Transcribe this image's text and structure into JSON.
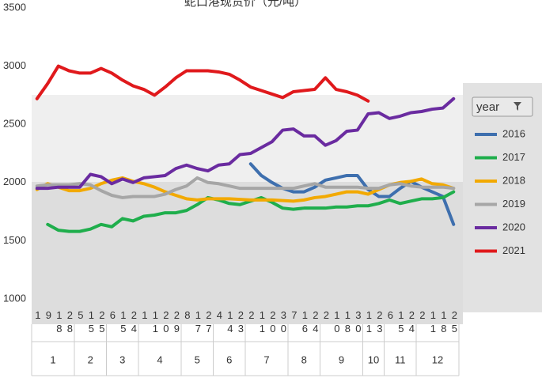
{
  "chart_data": {
    "type": "line",
    "title": "蛇口港现货价（元/吨）",
    "legend_title": "year",
    "legend_position": "right",
    "ylim": [
      1000,
      3500
    ],
    "yticks": [
      1000,
      1500,
      2000,
      2500,
      3000,
      3500
    ],
    "grid": false,
    "categories": [
      {
        "day": "1",
        "month": "1"
      },
      {
        "day": "9",
        "month": "1"
      },
      {
        "day": "18",
        "month": "1"
      },
      {
        "day": "28",
        "month": "1"
      },
      {
        "day": "5",
        "month": "2"
      },
      {
        "day": "15",
        "month": "2"
      },
      {
        "day": "25",
        "month": "2"
      },
      {
        "day": "6",
        "month": "3"
      },
      {
        "day": "15",
        "month": "3"
      },
      {
        "day": "24",
        "month": "3"
      },
      {
        "day": "1",
        "month": "4"
      },
      {
        "day": "11",
        "month": "4"
      },
      {
        "day": "20",
        "month": "4"
      },
      {
        "day": "29",
        "month": "4"
      },
      {
        "day": "8",
        "month": "5"
      },
      {
        "day": "17",
        "month": "5"
      },
      {
        "day": "27",
        "month": "5"
      },
      {
        "day": "4",
        "month": "6"
      },
      {
        "day": "14",
        "month": "6"
      },
      {
        "day": "23",
        "month": "6"
      },
      {
        "day": "2",
        "month": "7"
      },
      {
        "day": "11",
        "month": "7"
      },
      {
        "day": "20",
        "month": "7"
      },
      {
        "day": "30",
        "month": "7"
      },
      {
        "day": "7",
        "month": "8"
      },
      {
        "day": "16",
        "month": "8"
      },
      {
        "day": "24",
        "month": "8"
      },
      {
        "day": "2",
        "month": "9"
      },
      {
        "day": "10",
        "month": "9"
      },
      {
        "day": "18",
        "month": "9"
      },
      {
        "day": "30",
        "month": "9"
      },
      {
        "day": "11",
        "month": "10"
      },
      {
        "day": "23",
        "month": "10"
      },
      {
        "day": "6",
        "month": "11"
      },
      {
        "day": "15",
        "month": "11"
      },
      {
        "day": "24",
        "month": "11"
      },
      {
        "day": "2",
        "month": "12"
      },
      {
        "day": "11",
        "month": "12"
      },
      {
        "day": "18",
        "month": "12"
      },
      {
        "day": "25",
        "month": "12"
      }
    ],
    "series": [
      {
        "name": "2016",
        "color": "#3e6fae",
        "values": [
          null,
          null,
          null,
          null,
          null,
          null,
          null,
          null,
          null,
          null,
          null,
          null,
          null,
          null,
          null,
          null,
          null,
          null,
          null,
          null,
          2160,
          2060,
          2000,
          1950,
          1920,
          1920,
          1960,
          2020,
          2040,
          2060,
          2060,
          1940,
          1880,
          1880,
          1950,
          2010,
          1960,
          1920,
          1880,
          1640
        ]
      },
      {
        "name": "2017",
        "color": "#1fae4c",
        "values": [
          null,
          1640,
          1590,
          1580,
          1580,
          1600,
          1640,
          1620,
          1690,
          1670,
          1710,
          1720,
          1740,
          1740,
          1760,
          1810,
          1870,
          1850,
          1820,
          1810,
          1840,
          1870,
          1830,
          1780,
          1770,
          1780,
          1780,
          1780,
          1790,
          1790,
          1800,
          1800,
          1820,
          1850,
          1820,
          1840,
          1860,
          1860,
          1870,
          1920
        ]
      },
      {
        "name": "2018",
        "color": "#f2a900",
        "values": [
          1940,
          1990,
          1960,
          1930,
          1930,
          1950,
          1990,
          2020,
          2040,
          2010,
          1990,
          1960,
          1920,
          1890,
          1860,
          1850,
          1860,
          1860,
          1860,
          1855,
          1850,
          1850,
          1850,
          1845,
          1840,
          1850,
          1870,
          1880,
          1900,
          1920,
          1920,
          1900,
          1940,
          1980,
          2000,
          2010,
          2030,
          1990,
          1980,
          1950
        ]
      },
      {
        "name": "2019",
        "color": "#a6a6a6",
        "values": [
          1970,
          1980,
          1980,
          1980,
          1990,
          1980,
          1930,
          1890,
          1870,
          1880,
          1880,
          1880,
          1900,
          1940,
          1970,
          2040,
          2000,
          1990,
          1970,
          1950,
          1950,
          1950,
          1950,
          1950,
          1950,
          1970,
          1990,
          1960,
          1960,
          1960,
          1960,
          1950,
          1950,
          1980,
          1990,
          1970,
          1960,
          1960,
          1960,
          1950
        ]
      },
      {
        "name": "2020",
        "color": "#6a2ba0",
        "values": [
          1950,
          1950,
          1960,
          1960,
          1960,
          2070,
          2050,
          1990,
          2030,
          2000,
          2040,
          2050,
          2060,
          2120,
          2150,
          2120,
          2100,
          2150,
          2160,
          2240,
          2250,
          2300,
          2350,
          2450,
          2460,
          2400,
          2400,
          2320,
          2360,
          2440,
          2450,
          2590,
          2600,
          2550,
          2570,
          2600,
          2610,
          2630,
          2640,
          2720
        ]
      },
      {
        "name": "2021",
        "color": "#e0191c",
        "values": [
          2720,
          2850,
          3000,
          2960,
          2940,
          2940,
          2980,
          2940,
          2880,
          2830,
          2800,
          2750,
          2820,
          2900,
          2960,
          2960,
          2960,
          2950,
          2930,
          2880,
          2820,
          2790,
          2760,
          2730,
          2780,
          2790,
          2800,
          2900,
          2800,
          2780,
          2750,
          2700,
          null,
          null,
          null,
          null,
          null,
          null,
          null,
          null
        ]
      }
    ]
  }
}
